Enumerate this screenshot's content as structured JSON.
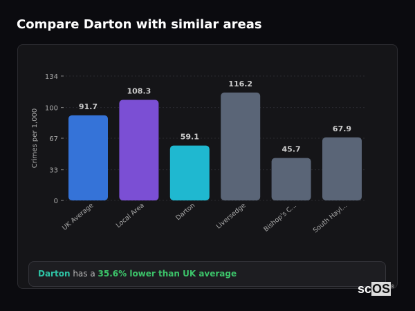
{
  "title": "Compare Darton with similar areas",
  "chart_data": {
    "type": "bar",
    "categories": [
      "UK Average",
      "Local Area",
      "Darton",
      "Liversedge",
      "Bishop's C...",
      "South Hayl..."
    ],
    "values": [
      91.7,
      108.3,
      59.1,
      116.2,
      45.7,
      67.9
    ],
    "value_labels": [
      "91.7",
      "108.3",
      "59.1",
      "116.2",
      "45.7",
      "67.9"
    ],
    "colors": [
      "#3573d8",
      "#7b4fd4",
      "#1fb8d0",
      "#5a6577",
      "#5a6577",
      "#5a6577"
    ],
    "ylabel": "Crimes per 1,000",
    "yticks": [
      0,
      33,
      67,
      100,
      134
    ],
    "ylim": [
      0,
      134
    ],
    "grid": true
  },
  "summary": {
    "area": "Darton",
    "middle": " has a ",
    "stat": "35.6% lower than UK average"
  },
  "logo": {
    "text1": "sc",
    "text2": "OS",
    "mark": "®"
  }
}
